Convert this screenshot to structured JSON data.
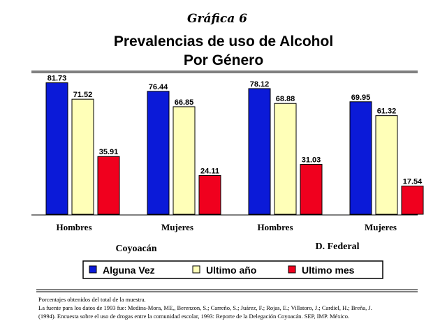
{
  "supertitle": "Gráfica 6",
  "title_line1": "Prevalencias de uso de Alcohol",
  "title_line2": "Por Género",
  "colors": {
    "alguna_vez": "#0b1ad8",
    "ultimo_anio": "#ffffb8",
    "ultimo_mes": "#f0001e",
    "frame": "#000000"
  },
  "chart_data": {
    "type": "bar",
    "categories": [
      "Hombres",
      "Mujeres",
      "Hombres",
      "Mujeres"
    ],
    "groups": [
      {
        "label": "Coyoacán",
        "categories": [
          "Hombres",
          "Mujeres"
        ]
      },
      {
        "label": "D. Federal",
        "categories": [
          "Hombres",
          "Mujeres"
        ]
      }
    ],
    "series": [
      {
        "name": "Alguna Vez",
        "values": [
          81.73,
          76.44,
          78.12,
          69.95
        ],
        "labels": [
          "81.73",
          "76.44",
          "78.12",
          "69.95"
        ],
        "color": "#0b1ad8"
      },
      {
        "name": "Ultimo año",
        "values": [
          71.52,
          66.85,
          68.88,
          61.32
        ],
        "labels": [
          "71.52",
          "66.85",
          "68.88",
          "61.32"
        ],
        "color": "#ffffb8"
      },
      {
        "name": "Ultimo mes",
        "values": [
          35.91,
          24.11,
          31.03,
          17.54
        ],
        "labels": [
          "35.91",
          "24.11",
          "31.03",
          "17.54"
        ],
        "color": "#f0001e"
      }
    ],
    "ylim": [
      0,
      82
    ],
    "grid": false,
    "legend_position": "bottom"
  },
  "notes": {
    "line1": "Porcentajes obtenidos del total de la muestra.",
    "line2": "La fuente para los datos de 1993 fue: Medina-Mora, ME,, Berenzon, S.; Carreño, S.; Juárez, F.; Rojas, E.; Villatoro, J.; Cardiel, H.; Breña, J.",
    "line3": "(1994). Encuesta sobre el uso de drogas entre la comunidad escolar, 1993: Reporte de la Delegación Coyoacán. SEP, IMP. México."
  }
}
